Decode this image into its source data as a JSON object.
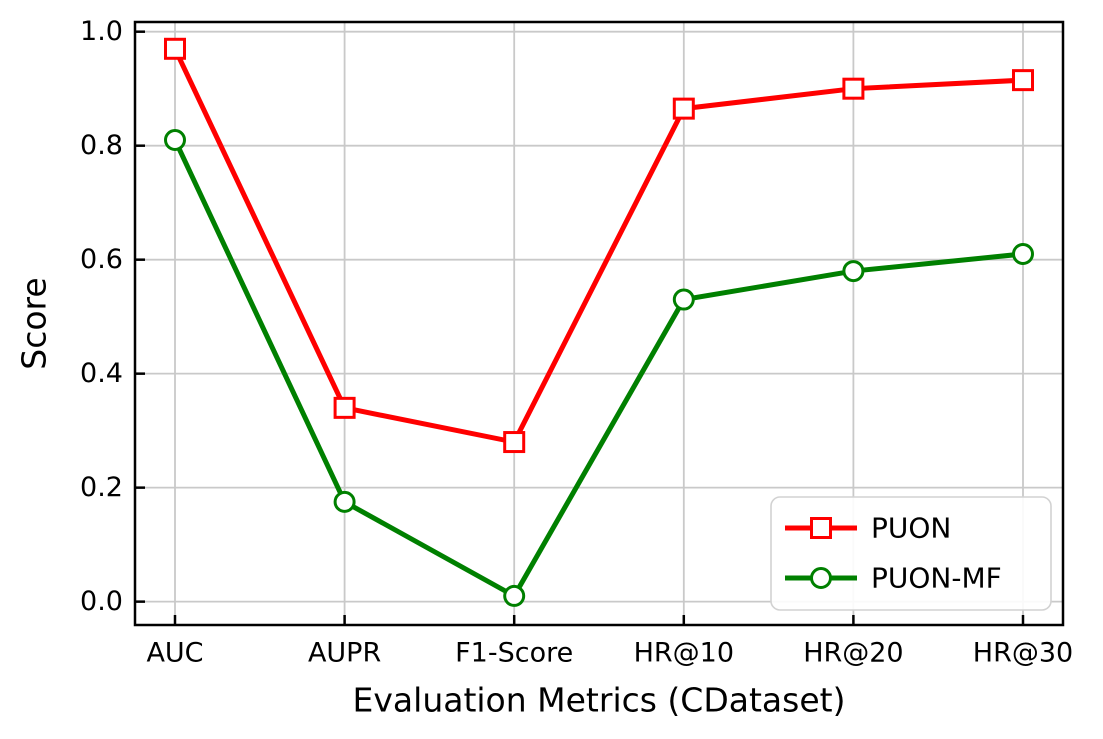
{
  "figure": {
    "background": "#ffffff"
  },
  "chart_data": {
    "type": "line",
    "title": "",
    "xlabel": "Evaluation Metrics (CDataset)",
    "ylabel": "Score",
    "categories": [
      "AUC",
      "AUPR",
      "F1-Score",
      "HR@10",
      "HR@20",
      "HR@30"
    ],
    "series": [
      {
        "name": "PUON",
        "color": "#ff0000",
        "marker": "square",
        "values": [
          0.97,
          0.34,
          0.28,
          0.865,
          0.9,
          0.915
        ]
      },
      {
        "name": "PUON-MF",
        "color": "#008000",
        "marker": "circle",
        "values": [
          0.81,
          0.175,
          0.01,
          0.53,
          0.58,
          0.61
        ]
      }
    ],
    "yticks": [
      0.0,
      0.2,
      0.4,
      0.6,
      0.8,
      1.0
    ],
    "ytick_labels": [
      "0.0",
      "0.2",
      "0.4",
      "0.6",
      "0.8",
      "1.0"
    ],
    "ylim": [
      -0.041,
      1.017
    ],
    "grid": true,
    "legend": {
      "position": "lower right",
      "entries": [
        "PUON",
        "PUON-MF"
      ]
    },
    "colors": {
      "grid": "#c9c9c9",
      "spine": "#000000",
      "legend_border": "#d2d2d2",
      "legend_background": "#ffffff"
    }
  }
}
